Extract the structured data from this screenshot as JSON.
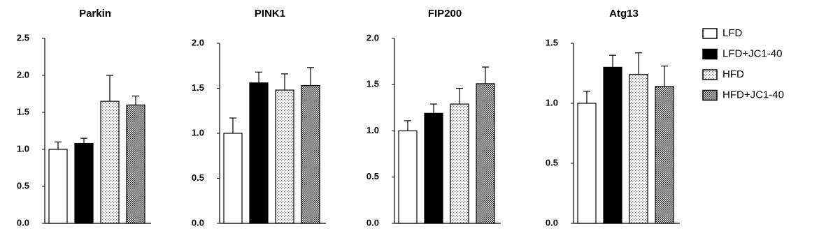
{
  "chart_data": [
    {
      "type": "bar",
      "title": "Parkin",
      "values": [
        1.0,
        1.08,
        1.65,
        1.6
      ],
      "errors": [
        0.1,
        0.07,
        0.35,
        0.12
      ],
      "ylim": [
        0,
        2.5
      ],
      "yticks": [
        {
          "value": 0,
          "label": "0.0"
        },
        0.5,
        {
          "value": 1,
          "label": "1.0"
        },
        1.5,
        {
          "value": 2,
          "label": "2.0"
        },
        2.5
      ]
    },
    {
      "type": "bar",
      "title": "PINK1",
      "values": [
        1.0,
        1.56,
        1.48,
        1.53
      ],
      "errors": [
        0.17,
        0.12,
        0.18,
        0.2
      ],
      "ylim": [
        0,
        2.0
      ],
      "yticks": [
        {
          "value": 0,
          "label": "0.0"
        },
        0.5,
        {
          "value": 1,
          "label": "1.0"
        },
        1.5,
        {
          "value": 2,
          "label": "2.0"
        }
      ]
    },
    {
      "type": "bar",
      "title": "FIP200",
      "values": [
        1.0,
        1.19,
        1.29,
        1.51
      ],
      "errors": [
        0.11,
        0.1,
        0.17,
        0.18
      ],
      "ylim": [
        0,
        2.0
      ],
      "yticks": [
        {
          "value": 0,
          "label": "0.0"
        },
        0.5,
        {
          "value": 1,
          "label": "1.0"
        },
        1.5,
        {
          "value": 2,
          "label": "2.0"
        }
      ]
    },
    {
      "type": "bar",
      "title": "Atg13",
      "values": [
        1.0,
        1.3,
        1.24,
        1.14
      ],
      "errors": [
        0.1,
        0.1,
        0.18,
        0.17
      ],
      "ylim": [
        0,
        1.5
      ],
      "yticks": [
        {
          "value": 0,
          "label": "0.0"
        },
        0.5,
        {
          "value": 1,
          "label": "1.0"
        },
        1.5
      ]
    }
  ],
  "legend": [
    {
      "name": "LFD",
      "fill": "white"
    },
    {
      "name": "LFD+JC1-40",
      "fill": "black"
    },
    {
      "name": "HFD",
      "fill": "dotted"
    },
    {
      "name": "HFD+JC1-40",
      "fill": "checkered"
    }
  ]
}
